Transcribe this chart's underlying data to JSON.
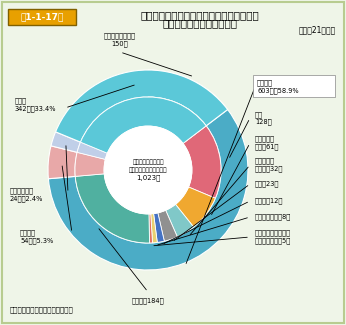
{
  "title_box_text": "第1-1-17図",
  "title_line1": "住宅火災の死に至った経過別死者発生状況",
  "title_line2": "（放火自殺者等を除く。）",
  "subtitle": "（平成21年中）",
  "center_line1": "住宅火災による死者",
  "center_line2": "（放火自殺者等を除く）",
  "center_line3": "1,023人",
  "total": 1023,
  "outer_values": [
    150,
    603,
    54,
    24,
    342
  ],
  "outer_colors": [
    "#c8d060",
    "#4bacc6",
    "#e8a8a8",
    "#c0cfe8",
    "#5bc8d8"
  ],
  "inner_values": [
    128,
    61,
    32,
    23,
    12,
    8,
    5,
    184
  ],
  "inner_colors": [
    "#e06878",
    "#f0a830",
    "#80c8c8",
    "#909090",
    "#4472c4",
    "#e8d070",
    "#e07060",
    "#50b0a0"
  ],
  "bg_color": "#eff5e8",
  "border_color": "#b8cc90",
  "footnote": "（備考）「火災報告」により作成",
  "labels": {
    "sonota_outer": "その他\n342人　33.4%",
    "byo_ki": "病気・身体不自由\n150人",
    "nige_okure": "逃げ遅れ\n603人　58.9%",
    "juku_sui": "熟睢\n128人",
    "ensho": "延焼拡大が\n早く　61人",
    "shoka": "消火しよう\nとして　32人",
    "dei_sui": "泥酔　23人",
    "nyu_yo_ji": "乳幼児　12人",
    "robai": "ろうばいして　8人",
    "mochi_dashi": "持ち出し品・服装に\n気をとられて　5人",
    "sonota_inner": "その他　184人",
    "chakui": "著衣著火\n54人　5.3%",
    "saishinnyu": "出火後再進入\n24人　2.4%"
  }
}
